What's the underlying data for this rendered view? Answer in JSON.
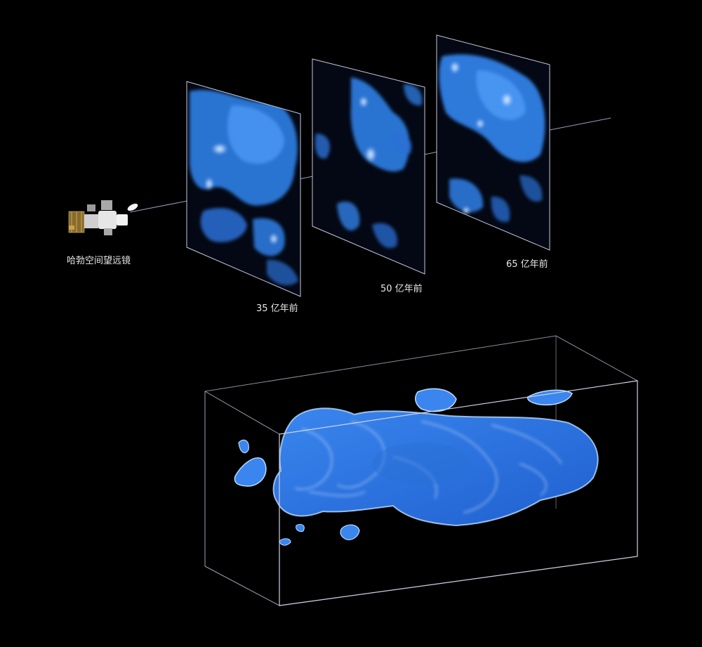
{
  "labels": {
    "telescope": "哈勃空间望远镜",
    "slice_35": "35 亿年前",
    "slice_50": "50 亿年前",
    "slice_65": "65 亿年前"
  },
  "colors": {
    "background": "#000000",
    "dark_matter": "#2f7fe6",
    "dark_matter_light": "#7fb6ff",
    "frame": "#c8c8d8"
  },
  "icons": {
    "telescope": "hubble-telescope-icon"
  }
}
